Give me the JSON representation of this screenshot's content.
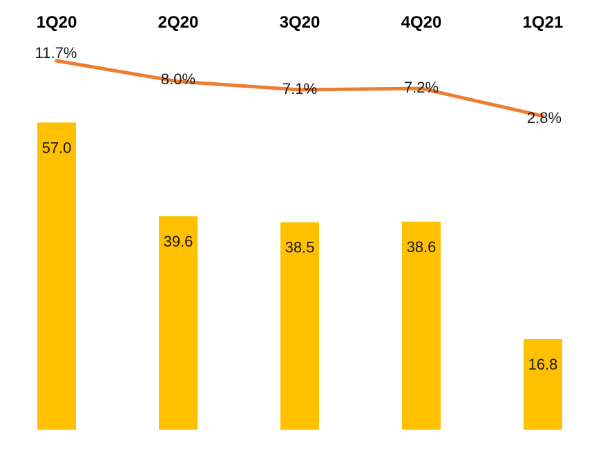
{
  "chart_data": {
    "type": "bar",
    "categories": [
      "1Q20",
      "2Q20",
      "3Q20",
      "4Q20",
      "1Q21"
    ],
    "series": [
      {
        "type": "bar",
        "values": [
          57.0,
          39.6,
          38.5,
          38.6,
          16.8
        ],
        "value_labels": [
          "57.0",
          "39.6",
          "38.5",
          "38.6",
          "16.8"
        ],
        "color": "#FFC000"
      },
      {
        "type": "line",
        "values": [
          11.7,
          8.0,
          7.1,
          7.2,
          2.8
        ],
        "value_labels": [
          "11.7%",
          "8.0%",
          "7.1%",
          "7.2%",
          "2.8%"
        ],
        "color": "#ED7D31"
      }
    ],
    "title": "",
    "xlabel": "",
    "ylabel": "",
    "ylim": [
      0,
      60
    ],
    "grid": false,
    "legend": "none"
  }
}
